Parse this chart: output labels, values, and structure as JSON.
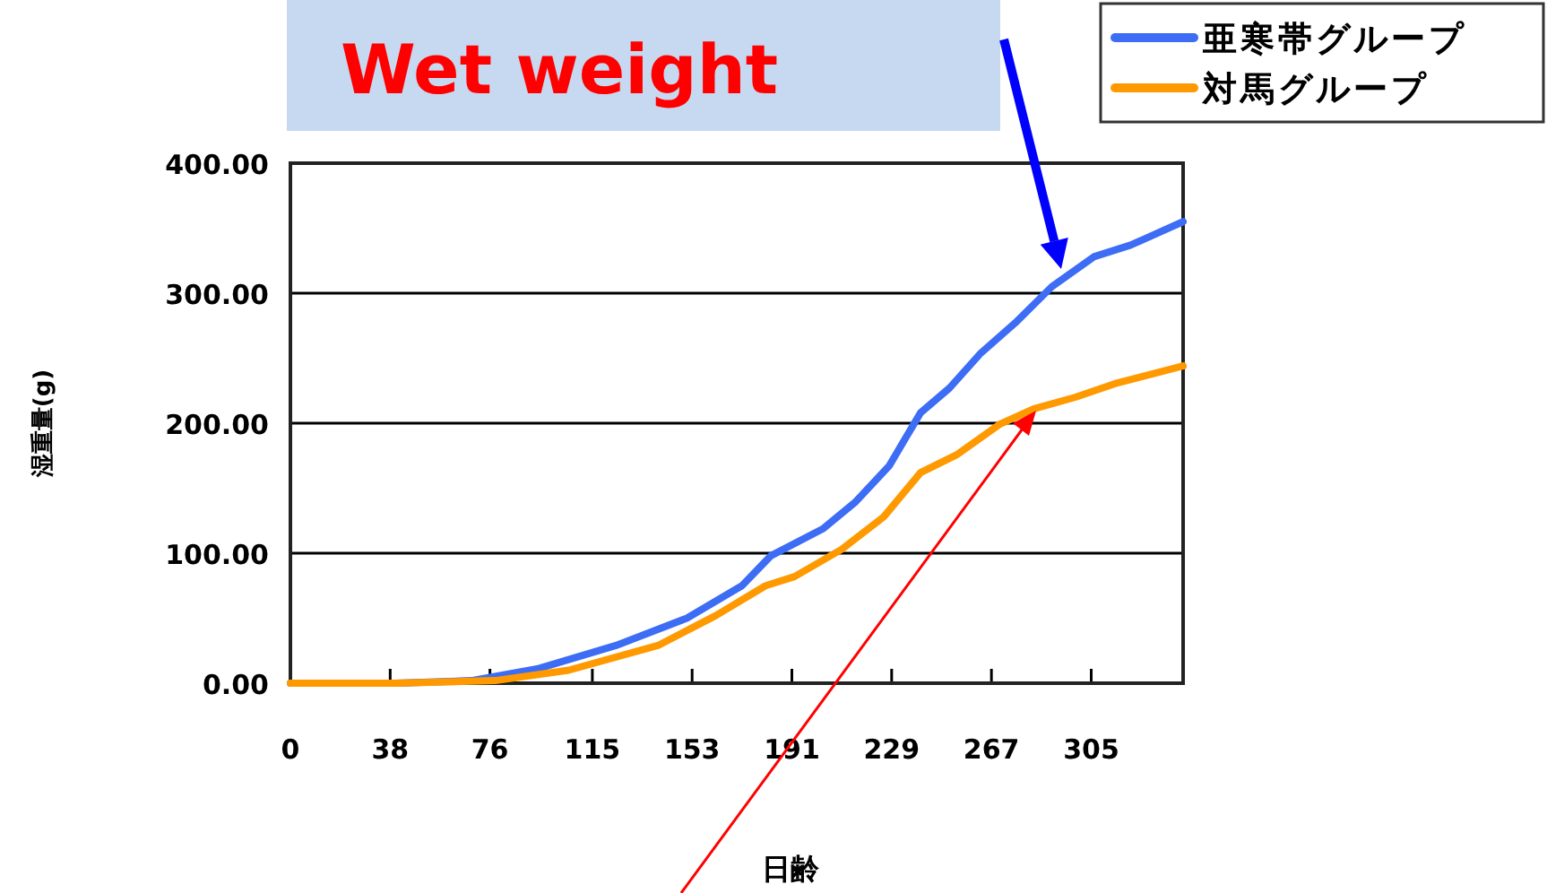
{
  "chart_data": {
    "type": "line",
    "xlabel": "日齢",
    "ylabel": "湿重量(g)",
    "legend": "top right",
    "grid": "y",
    "marker": "none",
    "line_style": "solid",
    "xlim": [
      0,
      340
    ],
    "xticks": [
      0,
      38,
      76,
      115,
      153,
      191,
      229,
      267,
      305
    ],
    "ylim": [
      0,
      400
    ],
    "yticks": [
      {
        "value": 0,
        "label": "0.00"
      },
      {
        "value": 100,
        "label": "100.00"
      },
      {
        "value": 200,
        "label": "200.00"
      },
      {
        "value": 300,
        "label": "300.00"
      },
      {
        "value": 400,
        "label": "400.00"
      }
    ],
    "annotations": [
      "Wet weight"
    ],
    "series": [
      {
        "name": "亜寒帯グループ",
        "color": "#3d6cf5",
        "x": [
          0,
          40,
          69,
          94,
          124,
          151,
          172,
          183,
          203,
          215,
          228,
          240,
          251,
          263,
          276,
          290,
          306,
          320,
          340
        ],
        "values": [
          0,
          0,
          2,
          11,
          29,
          50,
          75,
          98,
          119,
          139,
          167,
          208,
          227,
          254,
          277,
          305,
          328,
          337,
          355
        ]
      },
      {
        "name": "対馬グループ",
        "color": "#ff9900",
        "x": [
          0,
          40,
          78,
          106,
          140,
          162,
          181,
          192,
          210,
          226,
          240,
          254,
          270,
          283,
          299,
          315,
          340
        ],
        "values": [
          0,
          0,
          2,
          10,
          29,
          52,
          75,
          82,
          103,
          128,
          162,
          176,
          199,
          211,
          220,
          231,
          244
        ]
      }
    ]
  }
}
